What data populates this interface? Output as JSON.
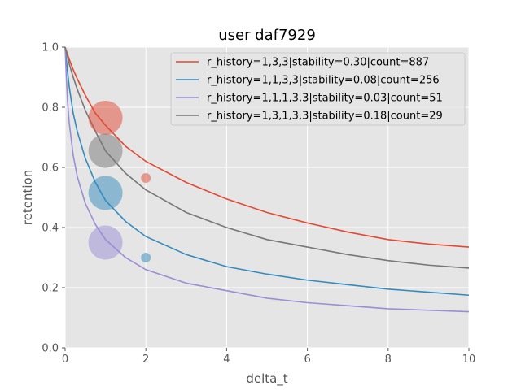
{
  "chart_data": {
    "type": "scatter",
    "title": "user daf7929",
    "xlabel": "delta_t",
    "ylabel": "retention",
    "xlim": [
      0,
      10
    ],
    "ylim": [
      0,
      1.0
    ],
    "xticks": [
      "0",
      "2",
      "4",
      "6",
      "8",
      "10"
    ],
    "yticks": [
      "0.0",
      "0.2",
      "0.4",
      "0.6",
      "0.8",
      "1.0"
    ],
    "grid": true,
    "legend_position": "top-right",
    "series": [
      {
        "name": "r_history=1,3,3|stability=0.30|count=887",
        "color": "#E24A33",
        "curve": {
          "x": [
            0,
            0.1,
            0.2,
            0.3,
            0.5,
            0.75,
            1,
            1.5,
            2,
            3,
            4,
            5,
            6,
            7,
            8,
            9,
            10
          ],
          "y": [
            1.0,
            0.96,
            0.925,
            0.895,
            0.84,
            0.78,
            0.74,
            0.67,
            0.62,
            0.55,
            0.495,
            0.45,
            0.415,
            0.385,
            0.36,
            0.345,
            0.335
          ]
        },
        "points": [
          {
            "x": 1,
            "y": 0.765,
            "size": "large"
          },
          {
            "x": 2,
            "y": 0.565,
            "size": "small"
          }
        ]
      },
      {
        "name": "r_history=1,1,3,3|stability=0.08|count=256",
        "color": "#348ABD",
        "curve": {
          "x": [
            0,
            0.05,
            0.1,
            0.2,
            0.3,
            0.5,
            0.75,
            1,
            1.5,
            2,
            3,
            4,
            5,
            6,
            7,
            8,
            9,
            10
          ],
          "y": [
            1.0,
            0.93,
            0.87,
            0.78,
            0.72,
            0.63,
            0.55,
            0.49,
            0.42,
            0.37,
            0.31,
            0.27,
            0.245,
            0.225,
            0.21,
            0.195,
            0.185,
            0.175
          ]
        },
        "points": [
          {
            "x": 1,
            "y": 0.515,
            "size": "large"
          },
          {
            "x": 2,
            "y": 0.3,
            "size": "small"
          }
        ]
      },
      {
        "name": "r_history=1,1,1,3,3|stability=0.03|count=51",
        "color": "#988ED5",
        "curve": {
          "x": [
            0,
            0.03,
            0.06,
            0.1,
            0.2,
            0.3,
            0.5,
            0.75,
            1,
            1.5,
            2,
            3,
            4,
            5,
            6,
            7,
            8,
            9,
            10
          ],
          "y": [
            1.0,
            0.9,
            0.82,
            0.75,
            0.64,
            0.57,
            0.48,
            0.41,
            0.36,
            0.3,
            0.26,
            0.215,
            0.19,
            0.165,
            0.15,
            0.14,
            0.13,
            0.125,
            0.12
          ]
        },
        "points": [
          {
            "x": 1,
            "y": 0.35,
            "size": "large"
          }
        ]
      },
      {
        "name": "r_history=1,3,1,3,3|stability=0.18|count=29",
        "color": "#777777",
        "curve": {
          "x": [
            0,
            0.1,
            0.2,
            0.3,
            0.5,
            0.75,
            1,
            1.5,
            2,
            3,
            4,
            5,
            6,
            7,
            8,
            9,
            10
          ],
          "y": [
            1.0,
            0.945,
            0.9,
            0.86,
            0.79,
            0.72,
            0.655,
            0.58,
            0.525,
            0.45,
            0.4,
            0.36,
            0.335,
            0.31,
            0.29,
            0.275,
            0.265
          ]
        },
        "points": [
          {
            "x": 1,
            "y": 0.655,
            "size": "large"
          }
        ]
      }
    ]
  }
}
